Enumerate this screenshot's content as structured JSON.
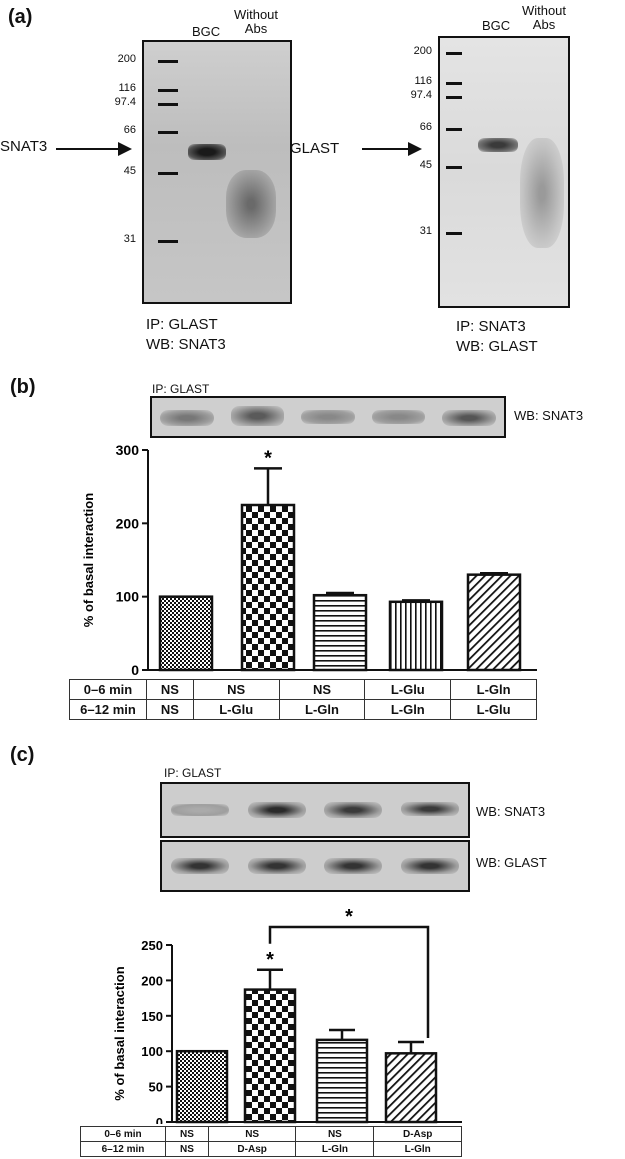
{
  "panel_a": {
    "label": "(a)",
    "left": {
      "lane_labels": [
        "BGC",
        "Without Abs"
      ],
      "markers": [
        "200",
        "116",
        "97.4",
        "66",
        "45",
        "31"
      ],
      "protein": "SNAT3",
      "ip": "IP:  GLAST",
      "wb": "WB: SNAT3"
    },
    "right": {
      "lane_labels": [
        "BGC",
        "Without Abs"
      ],
      "markers": [
        "200",
        "116",
        "97.4",
        "66",
        "45",
        "31"
      ],
      "protein": "GLAST",
      "ip": "IP:  SNAT3",
      "wb": "WB: GLAST"
    }
  },
  "panel_b": {
    "label": "(b)",
    "ip": "IP: GLAST",
    "wb": "WB: SNAT3",
    "row_labels": [
      "0–6 min",
      "6–12 min"
    ],
    "row1": [
      "NS",
      "NS",
      "NS",
      "L-Glu",
      "L-Gln"
    ],
    "row2": [
      "NS",
      "L-Glu",
      "L-Gln",
      "L-Gln",
      "L-Glu"
    ]
  },
  "panel_c": {
    "label": "(c)",
    "ip": "IP: GLAST",
    "wb1": "WB: SNAT3",
    "wb2": "WB: GLAST",
    "bracket_star": "*",
    "row_labels": [
      "0–6 min",
      "6–12 min"
    ],
    "row1": [
      "NS",
      "NS",
      "NS",
      "D-Asp"
    ],
    "row2": [
      "NS",
      "D-Asp",
      "L-Gln",
      "L-Gln"
    ]
  },
  "chart_data": [
    {
      "type": "bar",
      "ylabel": "% of basal interaction",
      "ylim": [
        0,
        300
      ],
      "yticks": [
        0,
        100,
        200,
        300
      ],
      "categories": [
        "NS/NS",
        "NS/L-Glu",
        "NS/L-Gln",
        "L-Glu/L-Gln",
        "L-Gln/L-Glu"
      ],
      "values": [
        100,
        225,
        102,
        93,
        130
      ],
      "errors": [
        0,
        50,
        3,
        2,
        2
      ],
      "significance": [
        "",
        "*",
        "",
        "",
        ""
      ],
      "patterns": [
        "fine-check",
        "checker",
        "horizontal-lines",
        "vertical-lines",
        "diagonal-lines"
      ]
    },
    {
      "type": "bar",
      "ylabel": "% of basal interaction",
      "ylim": [
        0,
        250
      ],
      "yticks": [
        0,
        50,
        100,
        150,
        200,
        250
      ],
      "categories": [
        "NS/NS",
        "NS/D-Asp",
        "NS/L-Gln",
        "D-Asp/L-Gln"
      ],
      "values": [
        100,
        187,
        116,
        97
      ],
      "errors": [
        0,
        28,
        14,
        16
      ],
      "significance": [
        "",
        "*",
        "",
        ""
      ],
      "patterns": [
        "fine-check",
        "checker",
        "horizontal-lines",
        "diagonal-lines"
      ]
    }
  ]
}
